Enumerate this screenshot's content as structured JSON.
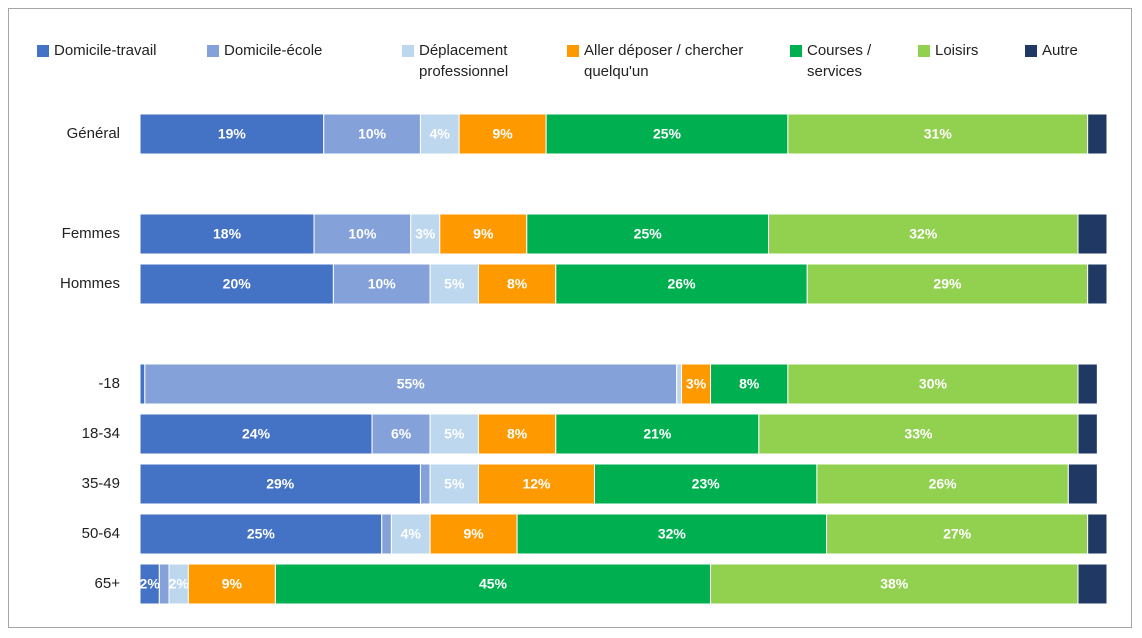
{
  "chart_data": {
    "type": "stacked-bar-horizontal",
    "categories": [
      "Général",
      null,
      "Femmes",
      "Hommes",
      null,
      "-18",
      "18-34",
      "35-49",
      "50-64",
      "65+"
    ],
    "xlim": [
      0,
      100
    ],
    "legend": "top",
    "series": [
      {
        "name": "Domicile-travail",
        "color": "#4472c4",
        "values": [
          19,
          null,
          18,
          20,
          null,
          0.5,
          24,
          29,
          25,
          2
        ],
        "value_labels": [
          "19%",
          null,
          "18%",
          "20%",
          null,
          null,
          "24%",
          "29%",
          "25%",
          "2%"
        ]
      },
      {
        "name": "Domicile-école",
        "color": "#84a2d9",
        "values": [
          10,
          null,
          10,
          10,
          null,
          55,
          6,
          1,
          1,
          1
        ],
        "value_labels": [
          "10%",
          null,
          "10%",
          "10%",
          null,
          "55%",
          "6%",
          null,
          null,
          null
        ]
      },
      {
        "name": "Déplacement professionnel",
        "color": "#bdd7ee",
        "values": [
          4,
          null,
          3,
          5,
          null,
          0.5,
          5,
          5,
          4,
          2
        ],
        "value_labels": [
          "4%",
          null,
          "3%",
          "5%",
          null,
          null,
          "5%",
          "5%",
          "4%",
          "2%"
        ]
      },
      {
        "name": "Aller déposer / chercher quelqu'un",
        "color": "#ff9900",
        "values": [
          9,
          null,
          9,
          8,
          null,
          3,
          8,
          12,
          9,
          9
        ],
        "value_labels": [
          "9%",
          null,
          "9%",
          "8%",
          null,
          "3%",
          "8%",
          "12%",
          "9%",
          "9%"
        ]
      },
      {
        "name": "Courses / services",
        "color": "#00b050",
        "values": [
          25,
          null,
          25,
          26,
          null,
          8,
          21,
          23,
          32,
          45
        ],
        "value_labels": [
          "25%",
          null,
          "25%",
          "26%",
          null,
          "8%",
          "21%",
          "23%",
          "32%",
          "45%"
        ]
      },
      {
        "name": "Loisirs",
        "color": "#92d050",
        "values": [
          31,
          null,
          32,
          29,
          null,
          30,
          33,
          26,
          27,
          38
        ],
        "value_labels": [
          "31%",
          null,
          "32%",
          "29%",
          null,
          "30%",
          "33%",
          "26%",
          "27%",
          "38%"
        ]
      },
      {
        "name": "Autre",
        "color": "#203864",
        "values": [
          2,
          null,
          3,
          2,
          null,
          2,
          2,
          3,
          2,
          3
        ]
      }
    ]
  }
}
